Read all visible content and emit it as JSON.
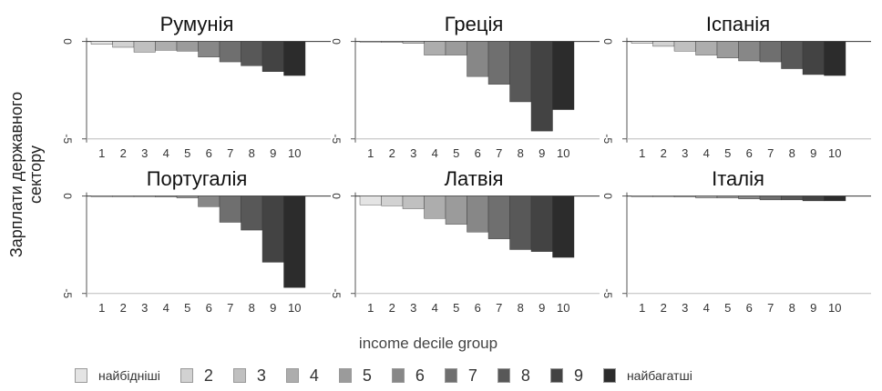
{
  "ylabel": "Зарплати державного сектору",
  "xlabel": "income decile group",
  "legend": {
    "items": [
      "найбідніші",
      "2",
      "3",
      "4",
      "5",
      "6",
      "7",
      "8",
      "9",
      "найбагатші"
    ],
    "colors": [
      "#e4e4e4",
      "#d2d2d2",
      "#c0c0c0",
      "#adadad",
      "#9b9b9b",
      "#878787",
      "#6f6f6f",
      "#585858",
      "#434343",
      "#2c2c2c"
    ]
  },
  "chart_data": [
    {
      "type": "bar",
      "title": "Румунія",
      "categories": [
        "1",
        "2",
        "3",
        "4",
        "5",
        "6",
        "7",
        "8",
        "9",
        "10"
      ],
      "values": [
        -0.15,
        -0.3,
        -0.55,
        -0.45,
        -0.5,
        -0.8,
        -1.05,
        -1.25,
        -1.55,
        -1.75
      ],
      "ylim": [
        -5.2,
        0.4
      ],
      "yticks": [
        "0",
        "-5"
      ]
    },
    {
      "type": "bar",
      "title": "Греція",
      "categories": [
        "1",
        "2",
        "3",
        "4",
        "5",
        "6",
        "7",
        "8",
        "9",
        "10"
      ],
      "values": [
        0,
        -0.05,
        -0.1,
        -0.7,
        -0.7,
        -1.8,
        -2.2,
        -3.1,
        -4.6,
        -3.5
      ],
      "ylim": [
        -5.2,
        0.4
      ],
      "yticks": [
        "0",
        "-5"
      ]
    },
    {
      "type": "bar",
      "title": "Іспанія",
      "categories": [
        "1",
        "2",
        "3",
        "4",
        "5",
        "6",
        "7",
        "8",
        "9",
        "10"
      ],
      "values": [
        -0.1,
        -0.25,
        -0.5,
        -0.7,
        -0.85,
        -1.0,
        -1.05,
        -1.4,
        -1.7,
        -1.75
      ],
      "ylim": [
        -5.2,
        0.4
      ],
      "yticks": [
        "0",
        "-5"
      ]
    },
    {
      "type": "bar",
      "title": "Португалія",
      "categories": [
        "1",
        "2",
        "3",
        "4",
        "5",
        "6",
        "7",
        "8",
        "9",
        "10"
      ],
      "values": [
        0,
        0,
        0,
        -0.05,
        -0.1,
        -0.55,
        -1.35,
        -1.75,
        -3.4,
        -4.7
      ],
      "ylim": [
        -5.2,
        0.4
      ],
      "yticks": [
        "0",
        "-5"
      ]
    },
    {
      "type": "bar",
      "title": "Латвія",
      "categories": [
        "1",
        "2",
        "3",
        "4",
        "5",
        "6",
        "7",
        "8",
        "9",
        "10"
      ],
      "values": [
        -0.45,
        -0.5,
        -0.65,
        -1.15,
        -1.45,
        -1.85,
        -2.2,
        -2.75,
        -2.85,
        -3.15
      ],
      "ylim": [
        -5.2,
        0.4
      ],
      "yticks": [
        "0",
        "-5"
      ]
    },
    {
      "type": "bar",
      "title": "Італія",
      "categories": [
        "1",
        "2",
        "3",
        "4",
        "5",
        "6",
        "7",
        "8",
        "9",
        "10"
      ],
      "values": [
        0,
        0,
        -0.05,
        -0.1,
        -0.1,
        -0.15,
        -0.2,
        -0.2,
        -0.25,
        -0.25
      ],
      "ylim": [
        -5.2,
        0.4
      ],
      "yticks": [
        "0",
        "-5"
      ]
    }
  ]
}
